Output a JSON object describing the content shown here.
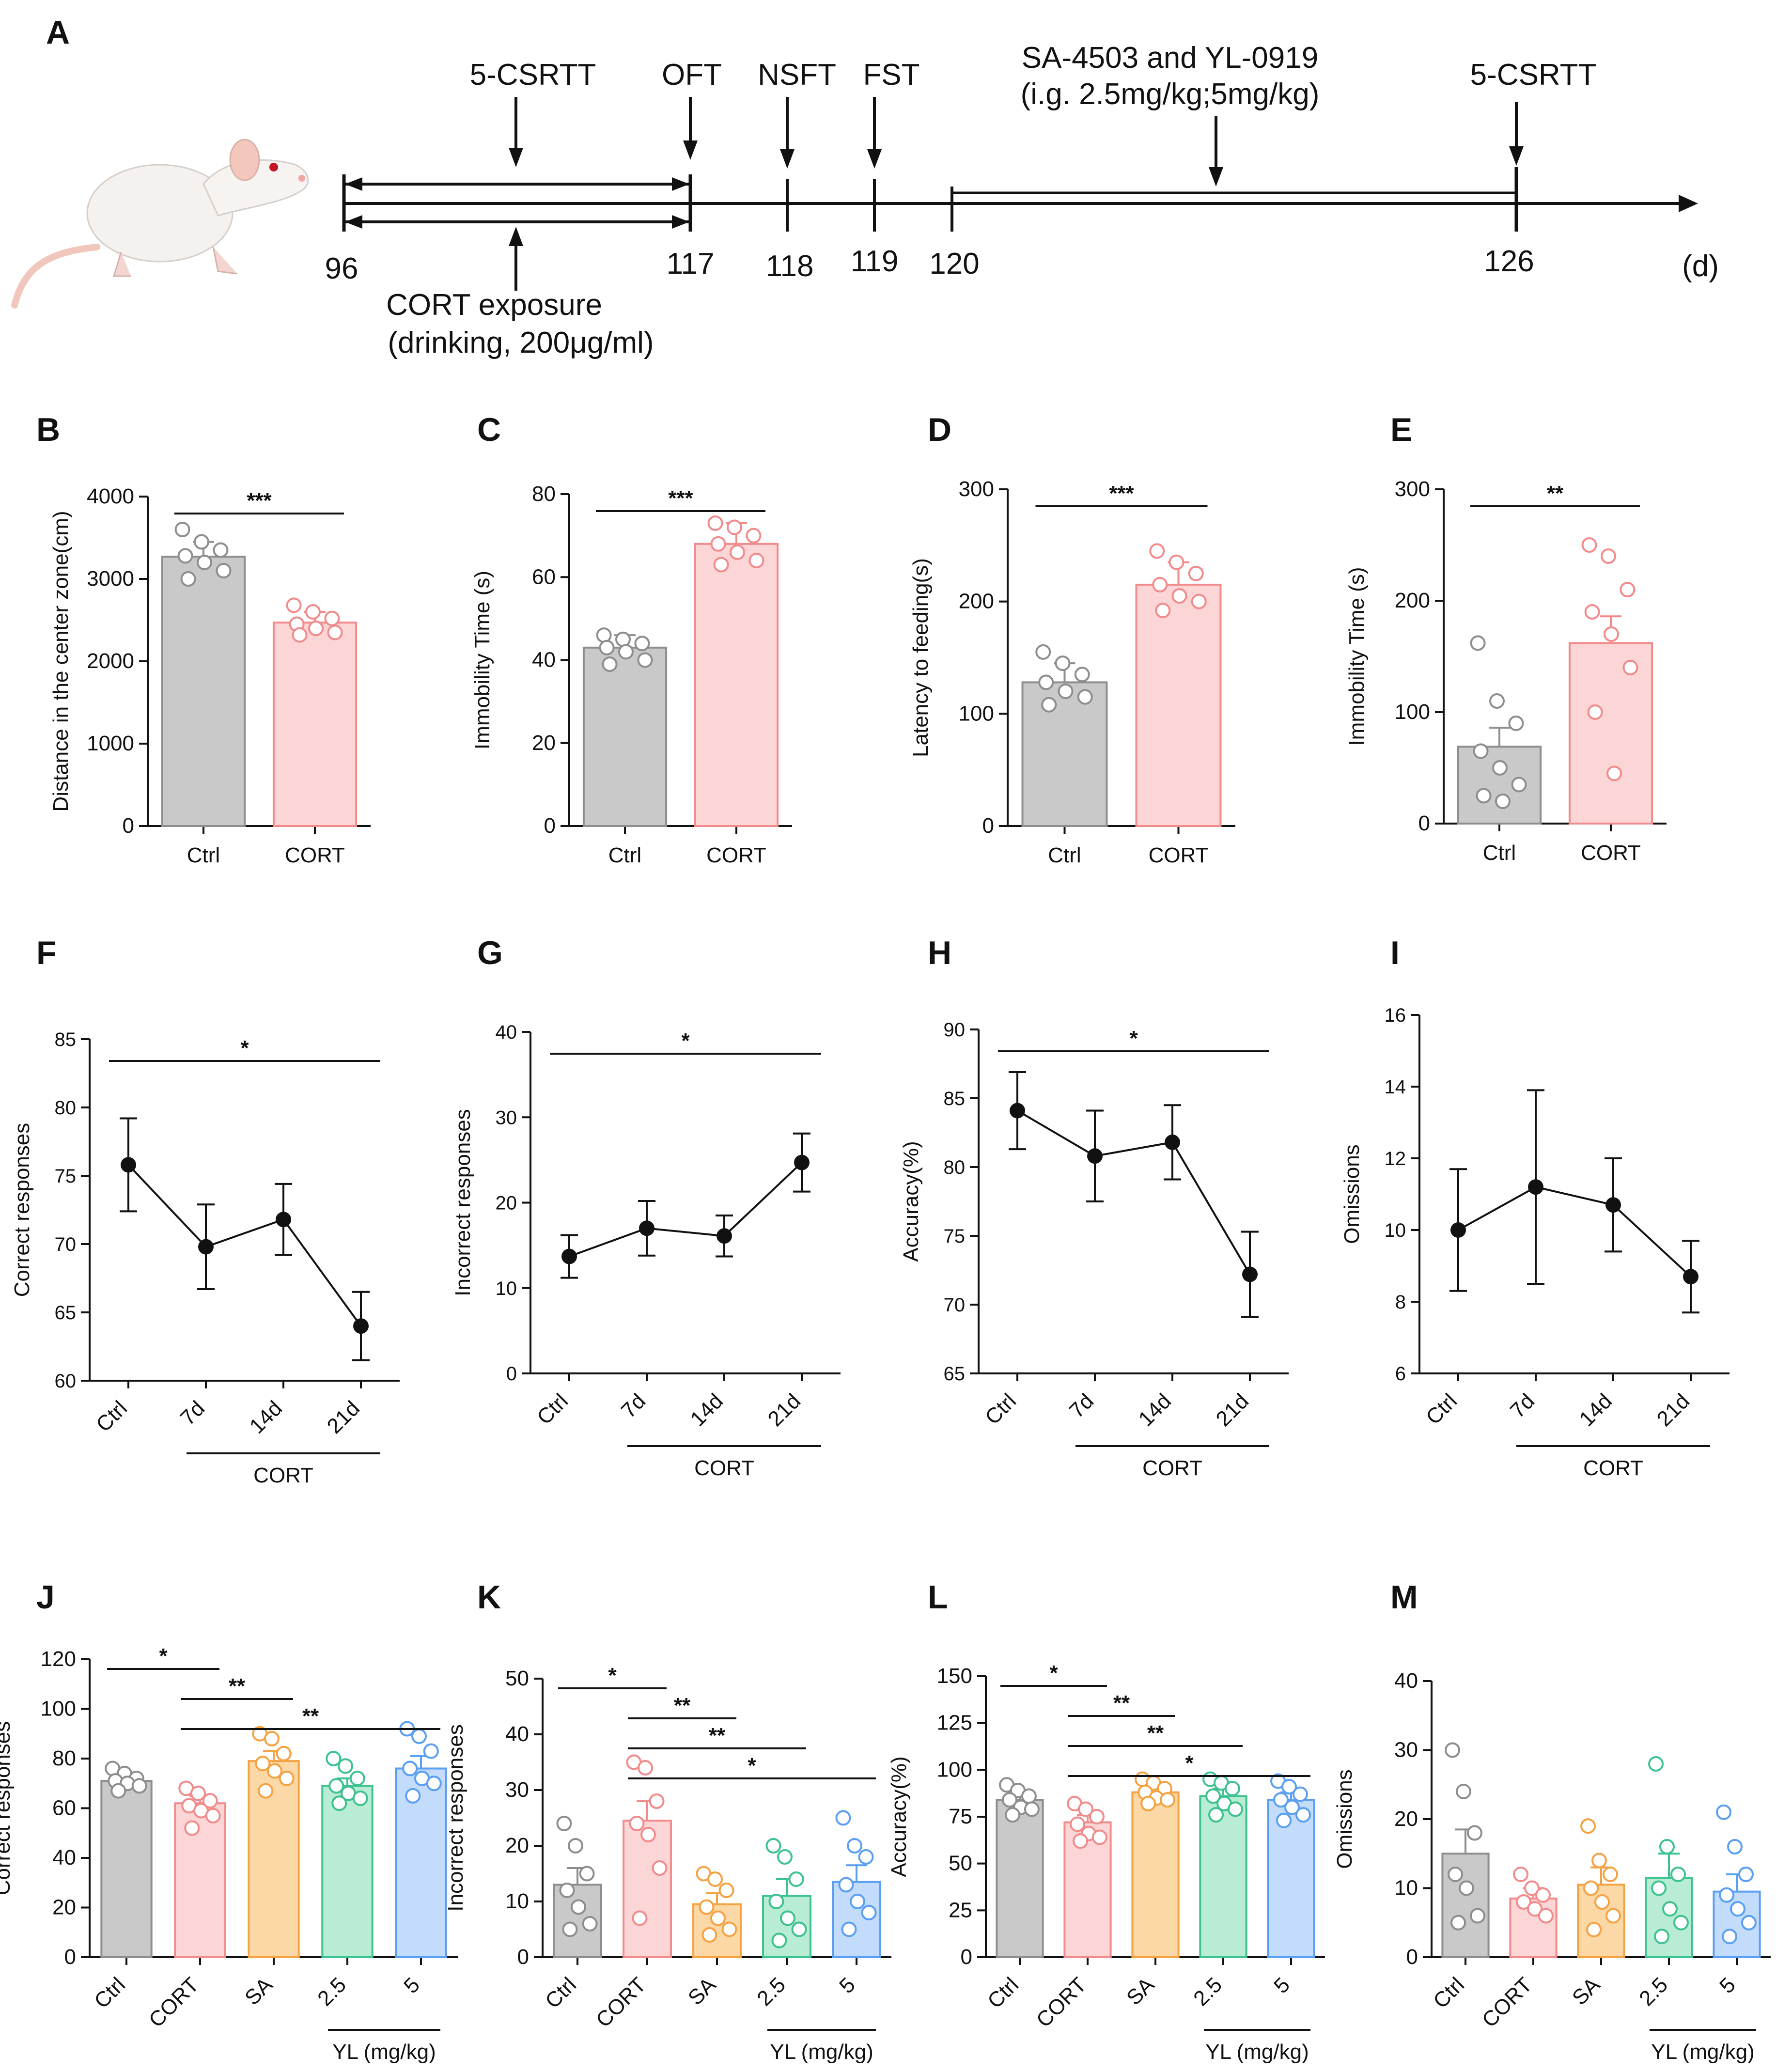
{
  "colors": {
    "ink": "#111111",
    "ctrl": "#c9c9c9",
    "ctrl_edge": "#8e8e8e",
    "cort": "#fcd6d6",
    "cort_edge": "#f28b8b",
    "sa": "#fcd8a6",
    "sa_edge": "#f5a243",
    "yl25": "#b9ecd4",
    "yl25_edge": "#3dc290",
    "yl5": "#c3dcfb",
    "yl5_edge": "#5b9ff2"
  },
  "timeline": {
    "panel_letter": "A",
    "unit": "(d)",
    "days": [
      "96",
      "117",
      "118",
      "119",
      "120",
      "126"
    ],
    "top_labels": [
      "5-CSRTT",
      "OFT",
      "NSFT",
      "FST",
      "5-CSRTT"
    ],
    "drug_label_1": "SA-4503 and YL-0919",
    "drug_label_2": "(i.g. 2.5mg/kg;5mg/kg)",
    "exposure_label_1": "CORT exposure",
    "exposure_label_2": "(drinking, 200μg/ml)",
    "rat_icon": "rat-illustration"
  },
  "chart_data": [
    {
      "panel": "B",
      "type": "bar",
      "ylabel": "Distance  in the center zone(cm)",
      "categories": [
        "Ctrl",
        "CORT"
      ],
      "values": [
        3270,
        2470
      ],
      "errors": [
        180,
        130
      ],
      "ylim": [
        0,
        4000
      ],
      "yticks": [
        "0",
        "1000",
        "2000",
        "3000",
        "4000"
      ],
      "points": [
        [
          3600,
          3450,
          3350,
          3280,
          3200,
          3100,
          3000
        ],
        [
          2680,
          2600,
          2520,
          2450,
          2400,
          2350,
          2320
        ]
      ],
      "colors": [
        "ctrl",
        "cort"
      ],
      "sig": [
        {
          "from": 0,
          "to": 1,
          "label": "***"
        }
      ]
    },
    {
      "panel": "C",
      "type": "bar",
      "ylabel": "Immobility Time (s)",
      "categories": [
        "Ctrl",
        "CORT"
      ],
      "values": [
        43,
        68
      ],
      "errors": [
        3,
        5
      ],
      "ylim": [
        0,
        80
      ],
      "yticks": [
        "0",
        "20",
        "40",
        "60",
        "80"
      ],
      "points": [
        [
          46,
          45,
          44,
          43,
          42,
          40,
          39
        ],
        [
          73,
          72,
          70,
          68,
          66,
          64,
          63
        ]
      ],
      "colors": [
        "ctrl",
        "cort"
      ],
      "sig": [
        {
          "from": 0,
          "to": 1,
          "label": "***"
        }
      ]
    },
    {
      "panel": "D",
      "type": "bar",
      "ylabel": "Latency to feeding(s)",
      "categories": [
        "Ctrl",
        "CORT"
      ],
      "values": [
        128,
        215
      ],
      "errors": [
        17,
        20
      ],
      "ylim": [
        0,
        300
      ],
      "yticks": [
        "0",
        "100",
        "200",
        "300"
      ],
      "points": [
        [
          155,
          145,
          135,
          128,
          120,
          115,
          108
        ],
        [
          245,
          235,
          225,
          215,
          205,
          200,
          192
        ]
      ],
      "colors": [
        "ctrl",
        "cort"
      ],
      "sig": [
        {
          "from": 0,
          "to": 1,
          "label": "***"
        }
      ]
    },
    {
      "panel": "E",
      "type": "bar",
      "ylabel": "Immobility Time (s)",
      "categories": [
        "Ctrl",
        "CORT"
      ],
      "values": [
        69,
        162
      ],
      "errors": [
        17,
        24
      ],
      "ylim": [
        0,
        300
      ],
      "yticks": [
        "0",
        "100",
        "200",
        "300"
      ],
      "points": [
        [
          162,
          110,
          90,
          65,
          50,
          35,
          25,
          20
        ],
        [
          250,
          240,
          210,
          190,
          170,
          140,
          100,
          45
        ]
      ],
      "colors": [
        "ctrl",
        "cort"
      ],
      "sig": [
        {
          "from": 0,
          "to": 1,
          "label": "**"
        }
      ]
    },
    {
      "panel": "F",
      "type": "line",
      "ylabel": "Correct responses",
      "categories": [
        "Ctrl",
        "7d",
        "14d",
        "21d"
      ],
      "values": [
        75.8,
        69.8,
        71.8,
        64.0
      ],
      "errors": [
        3.4,
        3.1,
        2.6,
        2.5
      ],
      "ylim": [
        60,
        85
      ],
      "yticks": [
        "60",
        "65",
        "70",
        "75",
        "80",
        "85"
      ],
      "group_label": "CORT",
      "group_span": [
        1,
        3
      ],
      "sig": [
        {
          "from": 0,
          "to": 3,
          "label": "*"
        }
      ]
    },
    {
      "panel": "G",
      "type": "line",
      "ylabel": "Incorrect responses",
      "categories": [
        "Ctrl",
        "7d",
        "14d",
        "21d"
      ],
      "values": [
        13.7,
        17.0,
        16.1,
        24.7
      ],
      "errors": [
        2.5,
        3.2,
        2.4,
        3.4
      ],
      "ylim": [
        0,
        40
      ],
      "yticks": [
        "0",
        "10",
        "20",
        "30",
        "40"
      ],
      "group_label": "CORT",
      "group_span": [
        1,
        3
      ],
      "sig": [
        {
          "from": 0,
          "to": 3,
          "label": "*"
        }
      ]
    },
    {
      "panel": "H",
      "type": "line",
      "ylabel": "Accuracy(%)",
      "categories": [
        "Ctrl",
        "7d",
        "14d",
        "21d"
      ],
      "values": [
        84.1,
        80.8,
        81.8,
        72.2
      ],
      "errors": [
        2.8,
        3.3,
        2.7,
        3.1
      ],
      "ylim": [
        65,
        90
      ],
      "yticks": [
        "65",
        "70",
        "75",
        "80",
        "85",
        "90"
      ],
      "group_label": "CORT",
      "group_span": [
        1,
        3
      ],
      "sig": [
        {
          "from": 0,
          "to": 3,
          "label": "*"
        }
      ]
    },
    {
      "panel": "I",
      "type": "line",
      "ylabel": "Omissions",
      "categories": [
        "Ctrl",
        "7d",
        "14d",
        "21d"
      ],
      "values": [
        10.0,
        11.2,
        10.7,
        8.7
      ],
      "errors": [
        1.7,
        2.7,
        1.3,
        1.0
      ],
      "ylim": [
        6,
        16
      ],
      "yticks": [
        "6",
        "8",
        "10",
        "12",
        "14",
        "16"
      ],
      "group_label": "CORT",
      "group_span": [
        1,
        3
      ],
      "sig": []
    },
    {
      "panel": "J",
      "type": "bar",
      "ylabel": "Correct responses",
      "categories": [
        "Ctrl",
        "CORT",
        "SA",
        "2.5",
        "5"
      ],
      "values": [
        71,
        62,
        79,
        69,
        76
      ],
      "errors": [
        3,
        3,
        4,
        3,
        5
      ],
      "ylim": [
        0,
        120
      ],
      "yticks": [
        "0",
        "20",
        "40",
        "60",
        "80",
        "100",
        "120"
      ],
      "points": [
        [
          76,
          74,
          72,
          71,
          70,
          69,
          67
        ],
        [
          68,
          66,
          63,
          61,
          59,
          57,
          52
        ],
        [
          90,
          88,
          82,
          78,
          75,
          72,
          67
        ],
        [
          80,
          77,
          72,
          69,
          66,
          64,
          62
        ],
        [
          92,
          89,
          83,
          76,
          72,
          70,
          65
        ]
      ],
      "colors": [
        "ctrl",
        "cort",
        "sa",
        "yl25",
        "yl5"
      ],
      "group_label": "YL (mg/kg)",
      "group_span": [
        3,
        4
      ],
      "sig": [
        {
          "from": 0,
          "to": 1,
          "label": "*"
        },
        {
          "from": 1,
          "to": 2,
          "label": "**"
        },
        {
          "from": 1,
          "to": 4,
          "label": "**"
        }
      ]
    },
    {
      "panel": "K",
      "type": "bar",
      "ylabel": "Incorrect responses",
      "categories": [
        "Ctrl",
        "CORT",
        "SA",
        "2.5",
        "5"
      ],
      "values": [
        13,
        24.5,
        9.5,
        11,
        13.5
      ],
      "errors": [
        3,
        3.5,
        2,
        3,
        3
      ],
      "ylim": [
        0,
        50
      ],
      "yticks": [
        "0",
        "10",
        "20",
        "30",
        "40",
        "50"
      ],
      "points": [
        [
          24,
          20,
          15,
          12,
          9,
          6,
          5
        ],
        [
          35,
          34,
          28,
          24,
          22,
          16,
          7
        ],
        [
          15,
          14,
          12,
          9,
          7,
          5,
          4
        ],
        [
          20,
          18,
          14,
          10,
          7,
          5,
          3
        ],
        [
          25,
          20,
          18,
          13,
          10,
          8,
          5
        ]
      ],
      "colors": [
        "ctrl",
        "cort",
        "sa",
        "yl25",
        "yl5"
      ],
      "group_label": "YL (mg/kg)",
      "group_span": [
        3,
        4
      ],
      "sig": [
        {
          "from": 0,
          "to": 1,
          "label": "*"
        },
        {
          "from": 1,
          "to": 2,
          "label": "**"
        },
        {
          "from": 1,
          "to": 3,
          "label": "**"
        },
        {
          "from": 1,
          "to": 4,
          "label": "*"
        }
      ]
    },
    {
      "panel": "L",
      "type": "bar",
      "ylabel": "Accuracy(%)",
      "categories": [
        "Ctrl",
        "CORT",
        "SA",
        "2.5",
        "5"
      ],
      "values": [
        84,
        72,
        88,
        86,
        84
      ],
      "errors": [
        3,
        4,
        3,
        4,
        4
      ],
      "ylim": [
        0,
        150
      ],
      "yticks": [
        "0",
        "25",
        "50",
        "75",
        "100",
        "125",
        "150"
      ],
      "points": [
        [
          92,
          89,
          86,
          84,
          80,
          79,
          76
        ],
        [
          82,
          79,
          75,
          71,
          66,
          64,
          62
        ],
        [
          95,
          93,
          90,
          88,
          85,
          84,
          82
        ],
        [
          95,
          93,
          90,
          86,
          82,
          79,
          76
        ],
        [
          94,
          91,
          87,
          84,
          80,
          76,
          73
        ]
      ],
      "colors": [
        "ctrl",
        "cort",
        "sa",
        "yl25",
        "yl5"
      ],
      "group_label": "YL (mg/kg)",
      "group_span": [
        3,
        4
      ],
      "sig": [
        {
          "from": 0,
          "to": 1,
          "label": "*"
        },
        {
          "from": 1,
          "to": 2,
          "label": "**"
        },
        {
          "from": 1,
          "to": 3,
          "label": "**"
        },
        {
          "from": 1,
          "to": 4,
          "label": "*"
        }
      ]
    },
    {
      "panel": "M",
      "type": "bar",
      "ylabel": "Omissions",
      "categories": [
        "Ctrl",
        "CORT",
        "SA",
        "2.5",
        "5"
      ],
      "values": [
        15,
        8.5,
        10.5,
        11.5,
        9.5
      ],
      "errors": [
        3.5,
        1.5,
        2.5,
        3.5,
        2.5
      ],
      "ylim": [
        0,
        40
      ],
      "yticks": [
        "0",
        "10",
        "20",
        "30",
        "40"
      ],
      "points": [
        [
          30,
          24,
          18,
          12,
          10,
          6,
          5
        ],
        [
          12,
          10,
          9,
          8,
          7,
          6
        ],
        [
          19,
          14,
          12,
          10,
          8,
          6,
          4
        ],
        [
          28,
          16,
          12,
          10,
          7,
          5,
          3
        ],
        [
          21,
          16,
          12,
          9,
          7,
          5,
          3
        ]
      ],
      "colors": [
        "ctrl",
        "cort",
        "sa",
        "yl25",
        "yl5"
      ],
      "group_label": "YL (mg/kg)",
      "group_span": [
        3,
        4
      ],
      "sig": []
    }
  ]
}
